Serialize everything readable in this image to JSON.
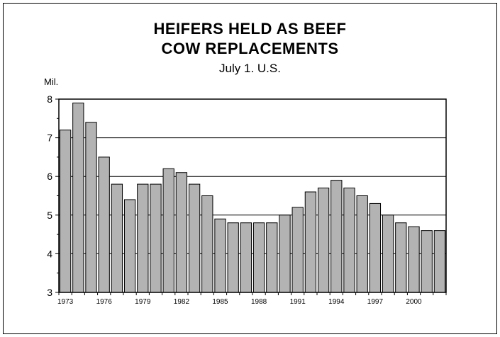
{
  "chart_data": {
    "type": "bar",
    "title": "HEIFERS HELD AS BEEF",
    "title_line2": "COW REPLACEMENTS",
    "subtitle": "July 1. U.S.",
    "ylabel": "Mil.",
    "xlabel": "",
    "ylim": [
      3,
      8
    ],
    "yticks": [
      3,
      4,
      5,
      6,
      7,
      8
    ],
    "grid": "horizontal",
    "bar_color": "#b3b3b3",
    "categories": [
      1973,
      1974,
      1975,
      1976,
      1977,
      1978,
      1979,
      1980,
      1981,
      1982,
      1983,
      1984,
      1985,
      1986,
      1987,
      1988,
      1989,
      1990,
      1991,
      1992,
      1993,
      1994,
      1995,
      1996,
      1997,
      1998,
      1999,
      2000,
      2001,
      2002
    ],
    "x_tick_labels": [
      "1973",
      "1976",
      "1979",
      "1982",
      "1985",
      "1988",
      "1991",
      "1994",
      "1997",
      "2000"
    ],
    "values": [
      7.2,
      7.9,
      7.4,
      6.5,
      5.8,
      5.4,
      5.8,
      5.8,
      6.2,
      6.1,
      5.8,
      5.5,
      4.9,
      4.8,
      4.8,
      4.8,
      4.8,
      5.0,
      5.2,
      5.6,
      5.7,
      5.9,
      5.7,
      5.5,
      5.3,
      5.0,
      4.8,
      4.7,
      4.6,
      4.6
    ]
  }
}
